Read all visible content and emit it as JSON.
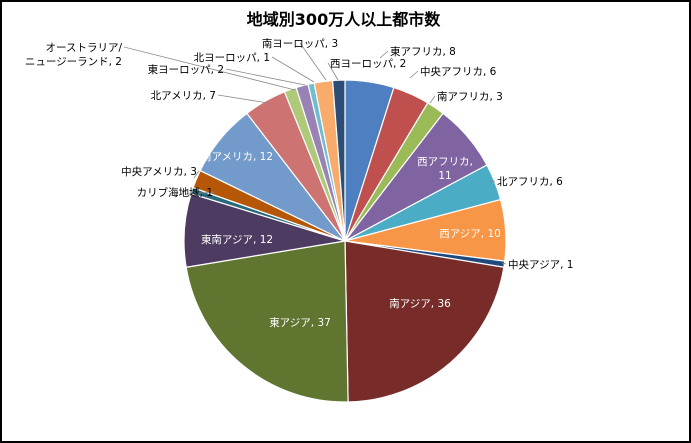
{
  "chart_data": {
    "type": "pie",
    "title": "地域別300万人以上都市数",
    "legend": "none",
    "start_angle_deg": 90,
    "direction": "clockwise",
    "slices": [
      {
        "name": "東アフリカ",
        "value": 8,
        "color": "#4E7FC0",
        "label": "東アフリカ, 8",
        "label_inside": false
      },
      {
        "name": "中央アフリカ",
        "value": 6,
        "color": "#C0504D",
        "label": "中央アフリカ, 6",
        "label_inside": false
      },
      {
        "name": "南アフリカ",
        "value": 3,
        "color": "#9BBB59",
        "label": "南アフリカ, 3",
        "label_inside": false
      },
      {
        "name": "西アフリカ",
        "value": 11,
        "color": "#8064A2",
        "label": "西アフリカ,\n11",
        "label_inside": true
      },
      {
        "name": "北アフリカ",
        "value": 6,
        "color": "#4BACC6",
        "label": "北アフリカ, 6",
        "label_inside": false
      },
      {
        "name": "西アジア",
        "value": 10,
        "color": "#F79646",
        "label": "西アジア, 10",
        "label_inside": true
      },
      {
        "name": "中央アジア",
        "value": 1,
        "color": "#1F497D",
        "label": "中央アジア, 1",
        "label_inside": false
      },
      {
        "name": "南アジア",
        "value": 36,
        "color": "#772C2A",
        "label": "南アジア, 36",
        "label_inside": true
      },
      {
        "name": "東アジア",
        "value": 37,
        "color": "#5F7530",
        "label": "東アジア, 37",
        "label_inside": true
      },
      {
        "name": "東南アジア",
        "value": 12,
        "color": "#4D3B62",
        "label": "東南アジア, 12",
        "label_inside": true
      },
      {
        "name": "カリブ海地域",
        "value": 1,
        "color": "#276A7C",
        "label": "カリブ海地域, 1",
        "label_inside": false
      },
      {
        "name": "中央アメリカ",
        "value": 3,
        "color": "#B65708",
        "label": "中央アメリカ, 3",
        "label_inside": false
      },
      {
        "name": "南アメリカ",
        "value": 12,
        "color": "#729ACA",
        "label": "南アメリカ, 12",
        "label_inside": true
      },
      {
        "name": "北アメリカ",
        "value": 7,
        "color": "#CD7371",
        "label": "北アメリカ, 7",
        "label_inside": false
      },
      {
        "name": "オーストラリア/ニュージーランド",
        "value": 2,
        "color": "#AFC97A",
        "label": "オーストラリア/\nニュージーランド, 2",
        "label_inside": false
      },
      {
        "name": "東ヨーロッパ",
        "value": 2,
        "color": "#9983B5",
        "label": "東ヨーロッパ, 2",
        "label_inside": false
      },
      {
        "name": "北ヨーロッパ",
        "value": 1,
        "color": "#6FBDD1",
        "label": "北ヨーロッパ, 1",
        "label_inside": false
      },
      {
        "name": "南ヨーロッパ",
        "value": 3,
        "color": "#F9AB6B",
        "label": "南ヨーロッパ, 3",
        "label_inside": false
      },
      {
        "name": "西ヨーロッパ",
        "value": 2,
        "color": "#2C4D75",
        "label": "西ヨーロッパ, 2",
        "label_inside": false
      }
    ]
  }
}
